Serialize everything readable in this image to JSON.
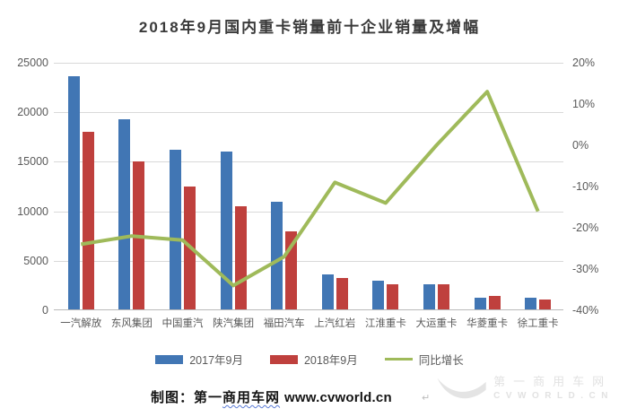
{
  "title": "2018年9月国内重卡销量前十企业销量及增幅",
  "chart_data": {
    "type": "bar",
    "subtype": "grouped-bars-with-line",
    "title": "2018年9月国内重卡销量前十企业销量及增幅",
    "categories": [
      "一汽解放",
      "东风集团",
      "中国重汽",
      "陕汽集团",
      "福田汽车",
      "上汽红岩",
      "江淮重卡",
      "大运重卡",
      "华菱重卡",
      "徐工重卡"
    ],
    "series": [
      {
        "name": "2017年9月",
        "type": "bar",
        "axis": "left",
        "color": "#4176b4",
        "values": [
          23600,
          19300,
          16200,
          16000,
          11000,
          3600,
          3000,
          2600,
          1300,
          1300
        ]
      },
      {
        "name": "2018年9月",
        "type": "bar",
        "axis": "left",
        "color": "#bf403d",
        "values": [
          18000,
          15000,
          12500,
          10500,
          8000,
          3300,
          2600,
          2600,
          1470,
          1100
        ]
      },
      {
        "name": "同比增长",
        "type": "line",
        "axis": "right",
        "color": "#9fba5a",
        "values_percent": [
          -24,
          -22,
          -23,
          -34,
          -27,
          -9,
          -14,
          0,
          13,
          -16
        ]
      }
    ],
    "left_axis": {
      "min": 0,
      "max": 25000,
      "tick_labels": [
        "25000",
        "20000",
        "15000",
        "10000",
        "5000",
        "0"
      ]
    },
    "right_axis": {
      "min": -40,
      "max": 20,
      "tick_labels": [
        "20%",
        "10%",
        "0%",
        "-10%",
        "-20%",
        "-30%",
        "-40%"
      ]
    },
    "grid": true,
    "legend_position": "bottom"
  },
  "footer": {
    "prefix": "制图：",
    "site_first": "第一",
    "site_wavy": "商用车网",
    "url": "www.cvworld.cn",
    "return_mark": "↵"
  },
  "watermark": {
    "line1": "第一商用车网",
    "line2": "CVWORLD.CN"
  },
  "colors": {
    "bar_2017": "#4176b4",
    "bar_2018": "#bf403d",
    "trend_line": "#9fba5a",
    "grid": "#d9d9d9",
    "axis": "#b9b9b9",
    "label": "#595959",
    "title": "#3a3a3a",
    "watermark": "#e2e2e2"
  }
}
